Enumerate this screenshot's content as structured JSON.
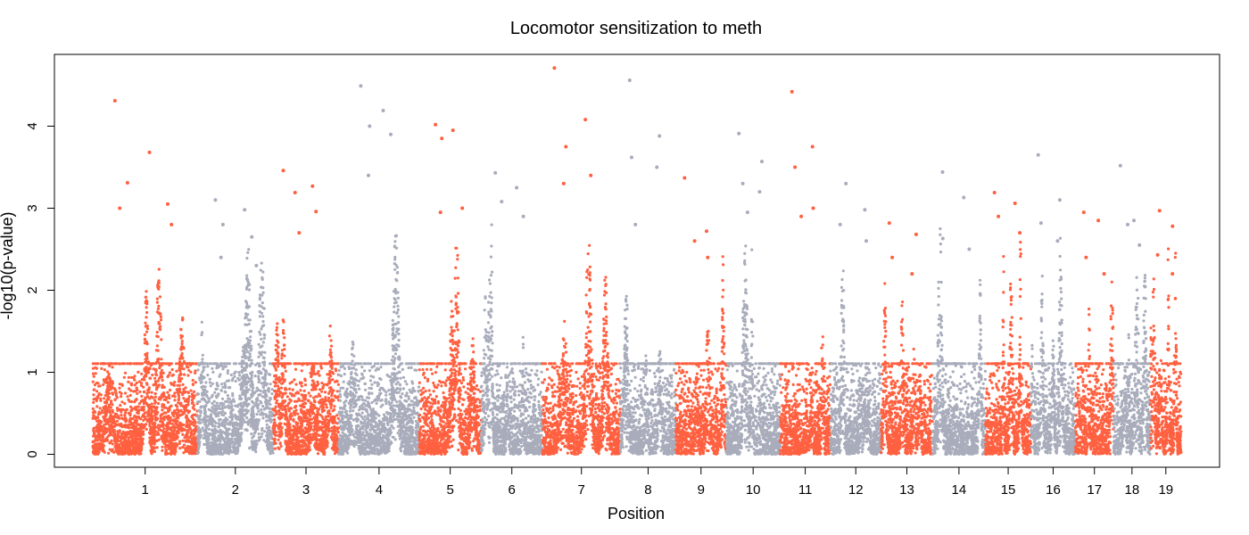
{
  "chart_data": {
    "type": "scatter",
    "subtype": "manhattan",
    "title": "Locomotor sensitization to meth",
    "xlabel": "Position",
    "ylabel": "-log10(p-value)",
    "ylim": [
      0,
      4.7
    ],
    "y_ticks": [
      0,
      1,
      2,
      3,
      4
    ],
    "colors": {
      "odd": "#ff6040",
      "even": "#a8acbb",
      "axis": "#000000"
    },
    "chromosomes": [
      {
        "name": "1",
        "peak": 4.31,
        "top_hits": [
          4.31,
          3.68,
          3.31,
          3.05,
          3.0,
          2.8
        ]
      },
      {
        "name": "2",
        "peak": 3.1,
        "top_hits": [
          3.1,
          2.98,
          2.8,
          2.65,
          2.4,
          2.3
        ]
      },
      {
        "name": "3",
        "peak": 3.46,
        "top_hits": [
          3.46,
          3.27,
          3.19,
          2.96,
          2.7
        ]
      },
      {
        "name": "4",
        "peak": 4.49,
        "top_hits": [
          4.49,
          4.19,
          4.0,
          3.9,
          3.4
        ]
      },
      {
        "name": "5",
        "peak": 4.02,
        "top_hits": [
          4.02,
          3.95,
          3.85,
          3.0,
          2.95
        ]
      },
      {
        "name": "6",
        "peak": 3.43,
        "top_hits": [
          3.43,
          3.25,
          3.08,
          2.9
        ]
      },
      {
        "name": "7",
        "peak": 4.71,
        "top_hits": [
          4.71,
          4.08,
          3.75,
          3.4,
          3.3
        ]
      },
      {
        "name": "8",
        "peak": 4.56,
        "top_hits": [
          4.56,
          3.88,
          3.62,
          3.5,
          2.8
        ]
      },
      {
        "name": "9",
        "peak": 3.37,
        "top_hits": [
          3.37,
          2.72,
          2.6,
          2.4
        ]
      },
      {
        "name": "10",
        "peak": 3.91,
        "top_hits": [
          3.91,
          3.57,
          3.3,
          3.2,
          2.95
        ]
      },
      {
        "name": "11",
        "peak": 4.42,
        "top_hits": [
          4.42,
          3.75,
          3.5,
          3.0,
          2.9
        ]
      },
      {
        "name": "12",
        "peak": 3.3,
        "top_hits": [
          3.3,
          2.98,
          2.8,
          2.6
        ]
      },
      {
        "name": "13",
        "peak": 2.82,
        "top_hits": [
          2.82,
          2.68,
          2.4,
          2.2
        ]
      },
      {
        "name": "14",
        "peak": 3.44,
        "top_hits": [
          3.44,
          3.13,
          2.63,
          2.5
        ]
      },
      {
        "name": "15",
        "peak": 3.19,
        "top_hits": [
          3.19,
          3.06,
          2.9,
          2.7
        ]
      },
      {
        "name": "16",
        "peak": 3.65,
        "top_hits": [
          3.65,
          3.1,
          2.82,
          2.6
        ]
      },
      {
        "name": "17",
        "peak": 2.95,
        "top_hits": [
          2.95,
          2.85,
          2.4,
          2.2
        ]
      },
      {
        "name": "18",
        "peak": 3.52,
        "top_hits": [
          3.52,
          2.85,
          2.8,
          2.55
        ]
      },
      {
        "name": "19",
        "peak": 2.97,
        "top_hits": [
          2.97,
          2.78,
          2.43,
          2.2
        ]
      }
    ]
  }
}
